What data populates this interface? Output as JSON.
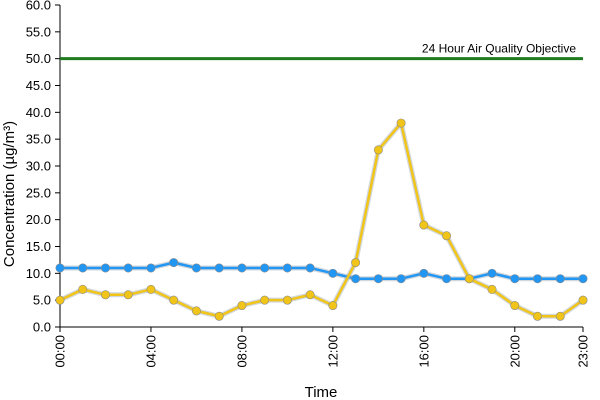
{
  "chart_data": {
    "type": "line",
    "xlabel": "Time",
    "ylabel": "Concentration (µg/m³)",
    "ylim": [
      0,
      60
    ],
    "y_tick_labels": [
      "0.0",
      "5.0",
      "10.0",
      "15.0",
      "20.0",
      "25.0",
      "30.0",
      "35.0",
      "40.0",
      "45.0",
      "50.0",
      "55.0",
      "60.0"
    ],
    "x_tick_labels": [
      "00:00",
      "04:00",
      "08:00",
      "12:00",
      "16:00",
      "20:00",
      "23:00"
    ],
    "x_tick_hours": [
      0,
      4,
      8,
      12,
      16,
      20,
      23
    ],
    "grid": false,
    "reference_line": {
      "value": 50,
      "label": "24 Hour Air Quality Objective",
      "color": "#1e7b1e"
    },
    "series": [
      {
        "color": "#2196f3",
        "x": [
          0,
          1,
          2,
          3,
          4,
          5,
          6,
          7,
          8,
          9,
          10,
          11,
          12,
          13,
          14,
          15,
          16,
          17,
          18,
          19,
          20,
          21,
          22,
          23
        ],
        "values": [
          11,
          11,
          11,
          11,
          11,
          12,
          11,
          11,
          11,
          11,
          11,
          11,
          10,
          9,
          9,
          9,
          10,
          9,
          9,
          10,
          9,
          9,
          9,
          9
        ]
      },
      {
        "color": "#f0c419",
        "x": [
          0,
          1,
          2,
          3,
          4,
          5,
          6,
          7,
          8,
          9,
          10,
          11,
          12,
          13,
          14,
          15,
          16,
          17,
          18,
          19,
          20,
          21,
          22,
          23
        ],
        "values": [
          5,
          7,
          6,
          6,
          7,
          5,
          3,
          2,
          4,
          5,
          5,
          6,
          4,
          12,
          33,
          38,
          19,
          17,
          9,
          7,
          4,
          2,
          2,
          5
        ]
      }
    ]
  }
}
